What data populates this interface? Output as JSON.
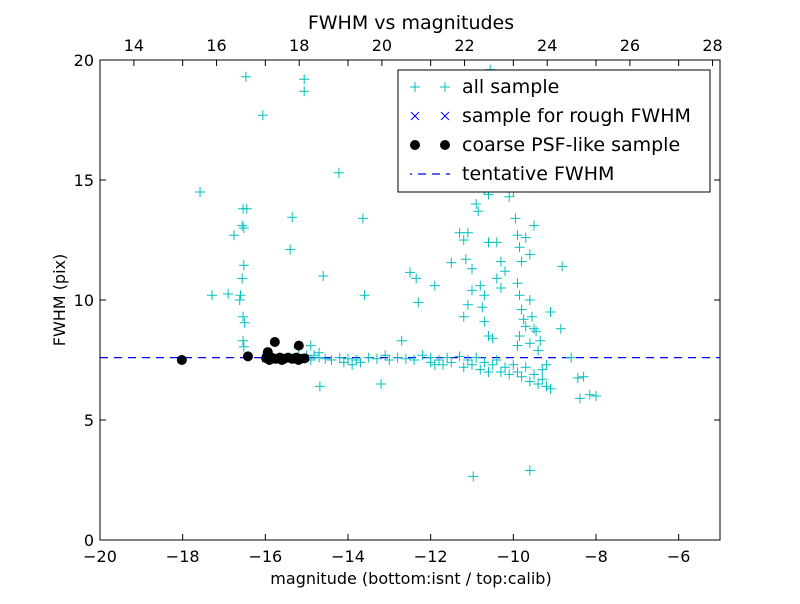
{
  "chart_data": {
    "type": "scatter",
    "title": "FWHM vs magnitudes",
    "xlabel": "magnitude (bottom:isnt / top:calib)",
    "ylabel": "FWHM (pix)",
    "xlim": [
      -20,
      -5
    ],
    "ylim": [
      0,
      20
    ],
    "top_xlim": [
      13.18,
      28.18
    ],
    "xticks": [
      -20,
      -18,
      -16,
      -14,
      -12,
      -10,
      -8,
      -6
    ],
    "xtick_labels": [
      "−20",
      "−18",
      "−16",
      "−14",
      "−12",
      "−10",
      "−8",
      "−6"
    ],
    "top_xticks": [
      14,
      16,
      18,
      20,
      22,
      24,
      26,
      28
    ],
    "top_xtick_labels": [
      "14",
      "16",
      "18",
      "20",
      "22",
      "24",
      "26",
      "28"
    ],
    "yticks": [
      0,
      5,
      10,
      15,
      20
    ],
    "ytick_labels": [
      "0",
      "5",
      "10",
      "15",
      "20"
    ],
    "grid": false,
    "legend_position": "top-right",
    "colors": {
      "all": "#00bfbf",
      "rough": "#0000ff",
      "psf": "#000000",
      "tentative": "#0000ff"
    },
    "series": [
      {
        "name": "all sample",
        "marker": "+",
        "points": [
          [
            -16.47,
            19.3
          ],
          [
            -15.06,
            19.2
          ],
          [
            -15.06,
            18.7
          ],
          [
            -16.06,
            17.7
          ],
          [
            -14.22,
            15.3
          ],
          [
            -17.58,
            14.5
          ],
          [
            -16.54,
            13.8
          ],
          [
            -16.45,
            13.8
          ],
          [
            -15.35,
            13.45
          ],
          [
            -13.64,
            13.4
          ],
          [
            -16.56,
            13.1
          ],
          [
            -16.52,
            13.0
          ],
          [
            -16.76,
            12.7
          ],
          [
            -15.4,
            12.1
          ],
          [
            -16.52,
            11.45
          ],
          [
            -16.56,
            10.9
          ],
          [
            -17.29,
            10.2
          ],
          [
            -16.9,
            10.25
          ],
          [
            -16.6,
            10.2
          ],
          [
            -16.62,
            10.0
          ],
          [
            -14.6,
            11.0
          ],
          [
            -13.6,
            10.2
          ],
          [
            -16.54,
            9.3
          ],
          [
            -16.5,
            9.05
          ],
          [
            -16.54,
            8.3
          ],
          [
            -16.52,
            8.05
          ],
          [
            -14.68,
            6.4
          ],
          [
            -13.2,
            6.5
          ],
          [
            -14.82,
            7.7
          ],
          [
            -14.9,
            8.1
          ],
          [
            -14.7,
            7.6
          ],
          [
            -14.55,
            7.55
          ],
          [
            -14.4,
            7.5
          ],
          [
            -14.2,
            7.6
          ],
          [
            -14.0,
            7.55
          ],
          [
            -13.8,
            7.5
          ],
          [
            -13.7,
            7.4
          ],
          [
            -13.5,
            7.6
          ],
          [
            -13.3,
            7.55
          ],
          [
            -13.1,
            7.7
          ],
          [
            -13.0,
            7.5
          ],
          [
            -12.8,
            7.6
          ],
          [
            -12.7,
            8.3
          ],
          [
            -12.6,
            7.55
          ],
          [
            -12.4,
            7.5
          ],
          [
            -12.2,
            7.7
          ],
          [
            -12.0,
            7.6
          ],
          [
            -11.9,
            7.3
          ],
          [
            -11.8,
            7.5
          ],
          [
            -11.6,
            7.6
          ],
          [
            -11.5,
            7.4
          ],
          [
            -11.3,
            7.65
          ],
          [
            -11.2,
            7.2
          ],
          [
            -11.1,
            7.5
          ],
          [
            -11.0,
            7.3
          ],
          [
            -10.9,
            7.6
          ],
          [
            -10.8,
            7.1
          ],
          [
            -10.7,
            7.4
          ],
          [
            -10.6,
            7.0
          ],
          [
            -10.5,
            7.3
          ],
          [
            -10.4,
            7.5
          ],
          [
            -10.3,
            7.0
          ],
          [
            -10.2,
            7.2
          ],
          [
            -10.1,
            6.9
          ],
          [
            -10.0,
            7.3
          ],
          [
            -9.9,
            7.0
          ],
          [
            -9.8,
            6.8
          ],
          [
            -9.7,
            7.2
          ],
          [
            -9.6,
            6.6
          ],
          [
            -9.5,
            6.9
          ],
          [
            -9.4,
            6.5
          ],
          [
            -9.3,
            6.7
          ],
          [
            -9.2,
            6.4
          ],
          [
            -9.1,
            6.3
          ],
          [
            -12.5,
            11.15
          ],
          [
            -12.35,
            10.9
          ],
          [
            -12.3,
            9.9
          ],
          [
            -11.9,
            10.6
          ],
          [
            -11.5,
            11.55
          ],
          [
            -11.3,
            12.8
          ],
          [
            -11.2,
            12.5
          ],
          [
            -11.1,
            12.8
          ],
          [
            -11.15,
            11.7
          ],
          [
            -11.0,
            11.3
          ],
          [
            -11.1,
            9.8
          ],
          [
            -11.2,
            9.3
          ],
          [
            -11.0,
            10.4
          ],
          [
            -10.9,
            14.0
          ],
          [
            -10.85,
            13.7
          ],
          [
            -10.7,
            14.6
          ],
          [
            -10.6,
            14.4
          ],
          [
            -10.6,
            12.4
          ],
          [
            -10.4,
            12.4
          ],
          [
            -10.3,
            11.6
          ],
          [
            -10.8,
            10.6
          ],
          [
            -10.7,
            10.2
          ],
          [
            -10.75,
            9.7
          ],
          [
            -10.7,
            9.1
          ],
          [
            -10.6,
            8.5
          ],
          [
            -10.5,
            8.4
          ],
          [
            -10.4,
            10.9
          ],
          [
            -10.3,
            10.5
          ],
          [
            -10.2,
            11.2
          ],
          [
            -10.1,
            14.3
          ],
          [
            -10.0,
            14.5
          ],
          [
            -9.95,
            13.4
          ],
          [
            -9.9,
            12.7
          ],
          [
            -9.85,
            12.2
          ],
          [
            -9.8,
            11.6
          ],
          [
            -9.9,
            10.7
          ],
          [
            -9.85,
            10.2
          ],
          [
            -9.8,
            9.6
          ],
          [
            -9.75,
            9.2
          ],
          [
            -9.7,
            8.9
          ],
          [
            -9.85,
            8.5
          ],
          [
            -9.9,
            8.1
          ],
          [
            -9.7,
            12.6
          ],
          [
            -9.6,
            11.9
          ],
          [
            -9.5,
            13.1
          ],
          [
            -9.6,
            10.0
          ],
          [
            -9.55,
            9.3
          ],
          [
            -9.5,
            8.8
          ],
          [
            -9.45,
            8.7
          ],
          [
            -9.6,
            8.2
          ],
          [
            -9.4,
            7.9
          ],
          [
            -9.35,
            8.3
          ],
          [
            -9.1,
            9.5
          ],
          [
            -8.85,
            8.8
          ],
          [
            -8.82,
            11.4
          ],
          [
            -9.3,
            7.1
          ],
          [
            -9.2,
            7.3
          ],
          [
            -10.56,
            19.6
          ],
          [
            -10.97,
            2.65
          ],
          [
            -9.6,
            2.9
          ],
          [
            -8.39,
            5.9
          ],
          [
            -8.0,
            6.0
          ],
          [
            -8.15,
            6.05
          ],
          [
            -8.44,
            6.75
          ],
          [
            -8.3,
            6.8
          ],
          [
            -8.6,
            7.6
          ],
          [
            -12.0,
            7.4
          ],
          [
            -11.7,
            7.3
          ],
          [
            -13.9,
            7.3
          ],
          [
            -14.1,
            7.4
          ],
          [
            -15.0,
            7.7
          ],
          [
            -14.9,
            7.5
          ],
          [
            -15.2,
            8.0
          ],
          [
            -14.7,
            7.8
          ]
        ]
      },
      {
        "name": "sample for rough FWHM",
        "marker": "x",
        "points": [
          [
            -15.98,
            7.58
          ],
          [
            -15.7,
            7.55
          ],
          [
            -15.5,
            7.58
          ],
          [
            -15.3,
            7.56
          ],
          [
            -15.1,
            7.57
          ]
        ]
      },
      {
        "name": "coarse PSF-like sample",
        "marker": "o",
        "points": [
          [
            -18.02,
            7.5
          ],
          [
            -16.42,
            7.65
          ],
          [
            -15.77,
            8.25
          ],
          [
            -15.19,
            8.1
          ],
          [
            -15.98,
            7.58
          ],
          [
            -15.94,
            7.83
          ],
          [
            -15.85,
            7.6
          ],
          [
            -15.75,
            7.55
          ],
          [
            -15.65,
            7.6
          ],
          [
            -15.55,
            7.55
          ],
          [
            -15.45,
            7.6
          ],
          [
            -15.35,
            7.55
          ],
          [
            -15.25,
            7.6
          ],
          [
            -15.15,
            7.55
          ],
          [
            -15.05,
            7.57
          ],
          [
            -15.9,
            7.5
          ],
          [
            -15.6,
            7.5
          ],
          [
            -15.2,
            7.5
          ]
        ]
      },
      {
        "name": "tentative FWHM",
        "marker": "--",
        "value": 7.6
      }
    ]
  }
}
